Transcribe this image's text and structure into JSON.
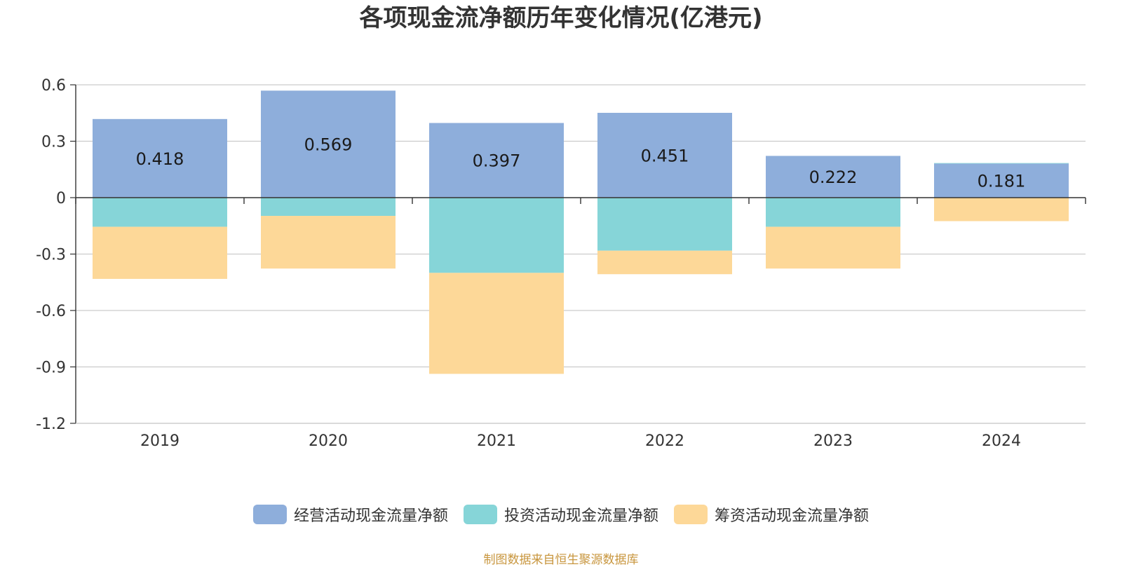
{
  "chart_data": {
    "type": "bar",
    "title": "各项现金流净额历年变化情况(亿港元)",
    "categories": [
      "2019",
      "2020",
      "2021",
      "2022",
      "2023",
      "2024"
    ],
    "series": [
      {
        "name": "经营活动现金流量净额",
        "color": "#8eaedb",
        "values": [
          0.418,
          0.569,
          0.397,
          0.451,
          0.222,
          0.181
        ]
      },
      {
        "name": "投资活动现金流量净额",
        "color": "#86d5d8",
        "values": [
          -0.155,
          -0.097,
          -0.4,
          -0.282,
          -0.155,
          0.003
        ]
      },
      {
        "name": "筹资活动现金流量净额",
        "color": "#fdd898",
        "values": [
          -0.277,
          -0.28,
          -0.537,
          -0.125,
          -0.222,
          -0.125
        ]
      }
    ],
    "data_labels": [
      "0.418",
      "0.569",
      "0.397",
      "0.451",
      "0.222",
      "0.181"
    ],
    "ylim": [
      -1.2,
      0.6
    ],
    "yticks": [
      0.6,
      0.3,
      0,
      -0.3,
      -0.6,
      -0.9,
      -1.2
    ],
    "ytick_labels": [
      "0.6",
      "0.3",
      "0",
      "-0.3",
      "-0.6",
      "-0.9",
      "-1.2"
    ],
    "stacked": true,
    "grid": true,
    "legend_position": "bottom"
  },
  "source_note": "制图数据来自恒生聚源数据库"
}
